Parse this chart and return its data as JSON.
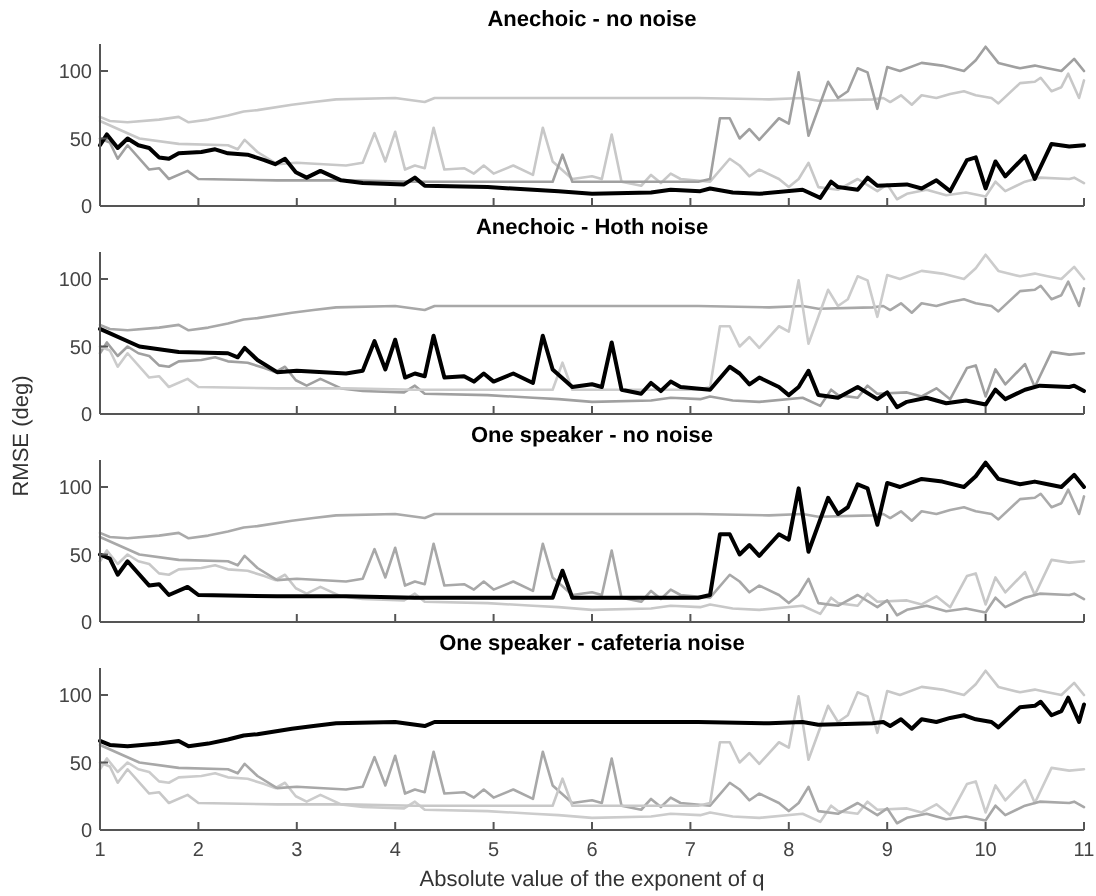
{
  "chart_data": [
    {
      "type": "line",
      "title": "Anechoic - no noise",
      "xlim": [
        1,
        11
      ],
      "ylim": [
        0,
        120
      ],
      "xticks": [
        1,
        2,
        3,
        4,
        5,
        6,
        7,
        8,
        9,
        10,
        11
      ],
      "yticks": [
        0,
        50,
        100
      ],
      "tick_labels": "y",
      "series": [
        {
          "color": "#c8c8c8",
          "x": [
            1,
            1.1,
            1.28,
            1.6,
            1.8,
            1.9,
            2.1,
            2.3,
            2.46,
            2.6,
            2.95,
            3.17,
            3.4,
            4,
            4.3,
            4.4,
            4.95,
            6.4,
            7.08,
            7.8,
            8.14,
            8.3,
            8.85,
            8.96,
            9.03,
            9.14,
            9.25,
            9.35,
            9.5,
            9.64,
            9.78,
            9.9,
            10.06,
            10.13,
            10.35,
            10.5,
            10.56,
            10.67,
            10.77,
            10.84,
            10.95,
            11
          ],
          "values": [
            66,
            63,
            62,
            64,
            66,
            62,
            64,
            67,
            70,
            71,
            75,
            77,
            79,
            80,
            77,
            80,
            80,
            80,
            80,
            79,
            80,
            78,
            79,
            80,
            77,
            82,
            75,
            82,
            80,
            83,
            85,
            82,
            80,
            76,
            91,
            92,
            95,
            85,
            88,
            98,
            80,
            93
          ]
        },
        {
          "color": "#c8c8c8",
          "x": [
            1,
            1.4,
            1.8,
            2.3,
            2.4,
            2.47,
            2.6,
            2.8,
            3,
            3.5,
            3.67,
            3.79,
            3.9,
            4,
            4.1,
            4.2,
            4.3,
            4.39,
            4.5,
            4.7,
            4.8,
            4.9,
            5,
            5.2,
            5.4,
            5.5,
            5.6,
            5.8,
            6,
            6.1,
            6.2,
            6.3,
            6.5,
            6.6,
            6.7,
            6.8,
            6.9,
            7.2,
            7.4,
            7.5,
            7.6,
            7.7,
            7.9,
            8,
            8.1,
            8.2,
            8.3,
            8.5,
            8.7,
            8.9,
            9,
            9.1,
            9.2,
            9.4,
            9.6,
            9.8,
            10,
            10.1,
            10.2,
            10.4,
            10.55,
            10.85,
            10.9,
            11
          ],
          "values": [
            63,
            50,
            46,
            45,
            42,
            49,
            40,
            31,
            32,
            30,
            32,
            54,
            33,
            55,
            27,
            30,
            28,
            58,
            27,
            28,
            24,
            30,
            24,
            30,
            23,
            58,
            33,
            20,
            22,
            20,
            53,
            18,
            15,
            23,
            17,
            24,
            20,
            18,
            35,
            30,
            22,
            27,
            20,
            14,
            20,
            32,
            14,
            12,
            20,
            11,
            16,
            5,
            9,
            12,
            8,
            10,
            7,
            18,
            11,
            18,
            21,
            20,
            21,
            17
          ]
        },
        {
          "color": "#a0a0a0",
          "x": [
            1,
            1.1,
            1.18,
            1.28,
            1.5,
            1.6,
            1.7,
            1.89,
            2,
            2.8,
            3.5,
            4.2,
            5.5,
            5.6,
            5.7,
            5.8,
            6.37,
            7.08,
            7.2,
            7.3,
            7.4,
            7.5,
            7.6,
            7.7,
            7.9,
            8,
            8.1,
            8.2,
            8.4,
            8.5,
            8.6,
            8.7,
            8.8,
            8.9,
            9,
            9.13,
            9.35,
            9.56,
            9.78,
            9.9,
            10,
            10.13,
            10.35,
            10.5,
            10.63,
            10.77,
            10.9,
            11
          ],
          "values": [
            50,
            47,
            35,
            45,
            27,
            28,
            20,
            26,
            20,
            19,
            19,
            18,
            18,
            18,
            38,
            18,
            18,
            18,
            20,
            65,
            65,
            50,
            57,
            49,
            65,
            61,
            99,
            52,
            92,
            80,
            85,
            102,
            99,
            72,
            103,
            100,
            106,
            104,
            100,
            108,
            118,
            106,
            102,
            104,
            102,
            100,
            109,
            100
          ]
        },
        {
          "color": "#000000",
          "x": [
            1,
            1.07,
            1.18,
            1.28,
            1.39,
            1.5,
            1.6,
            1.7,
            1.8,
            2.03,
            2.17,
            2.3,
            2.5,
            2.67,
            2.78,
            2.88,
            2.99,
            3.1,
            3.24,
            3.45,
            3.67,
            4.09,
            4.2,
            4.3,
            4.94,
            5.4,
            5.66,
            6,
            6.6,
            6.8,
            7.1,
            7.2,
            7.43,
            7.7,
            8.14,
            8.32,
            8.43,
            8.5,
            8.7,
            8.8,
            8.9,
            9.2,
            9.35,
            9.5,
            9.64,
            9.81,
            9.9,
            10,
            10.1,
            10.2,
            10.4,
            10.5,
            10.67,
            10.85,
            11
          ],
          "values": [
            45,
            53,
            43,
            50,
            45,
            43,
            36,
            35,
            39,
            40,
            42,
            39,
            38,
            34,
            31,
            35,
            25,
            21,
            26,
            19,
            17,
            16,
            21,
            15,
            14,
            12,
            11,
            9,
            10,
            12,
            11,
            13,
            10,
            9,
            12,
            6,
            18,
            14,
            12,
            21,
            15,
            16,
            13,
            19,
            11,
            34,
            36,
            13,
            33,
            22,
            37,
            20,
            46,
            44,
            45
          ]
        }
      ]
    },
    {
      "type": "line",
      "title": "Anechoic - Hoth noise",
      "ylabel": "RMSE (deg)",
      "xlim": [
        1,
        11
      ],
      "ylim": [
        0,
        120
      ],
      "xticks": [
        1,
        2,
        3,
        4,
        5,
        6,
        7,
        8,
        9,
        10,
        11
      ],
      "yticks": [
        0,
        50,
        100
      ],
      "tick_labels": "y",
      "series": [
        {
          "color": "#a8a8a8",
          "x": [
            1,
            1.1,
            1.28,
            1.6,
            1.8,
            1.9,
            2.1,
            2.3,
            2.46,
            2.6,
            2.95,
            3.17,
            3.4,
            4,
            4.3,
            4.4,
            4.95,
            6.4,
            7.08,
            7.8,
            8.14,
            8.3,
            8.85,
            8.96,
            9.03,
            9.14,
            9.25,
            9.35,
            9.5,
            9.64,
            9.78,
            9.9,
            10.06,
            10.13,
            10.35,
            10.5,
            10.56,
            10.67,
            10.77,
            10.84,
            10.95,
            11
          ],
          "values": [
            66,
            63,
            62,
            64,
            66,
            62,
            64,
            67,
            70,
            71,
            75,
            77,
            79,
            80,
            77,
            80,
            80,
            80,
            80,
            79,
            80,
            78,
            79,
            80,
            77,
            82,
            75,
            82,
            80,
            83,
            85,
            82,
            80,
            76,
            91,
            92,
            95,
            85,
            88,
            98,
            80,
            93
          ]
        },
        {
          "color": "#a0a0a0",
          "x": [
            1,
            1.07,
            1.18,
            1.28,
            1.39,
            1.5,
            1.6,
            1.7,
            1.8,
            2.03,
            2.17,
            2.3,
            2.5,
            2.67,
            2.78,
            2.88,
            2.99,
            3.1,
            3.24,
            3.45,
            3.67,
            4.09,
            4.2,
            4.3,
            4.94,
            5.4,
            5.66,
            6,
            6.6,
            6.8,
            7.1,
            7.2,
            7.43,
            7.7,
            8.14,
            8.32,
            8.43,
            8.5,
            8.7,
            8.8,
            8.9,
            9.2,
            9.35,
            9.5,
            9.64,
            9.81,
            9.9,
            10,
            10.1,
            10.2,
            10.4,
            10.5,
            10.67,
            10.85,
            11
          ],
          "values": [
            45,
            53,
            43,
            50,
            45,
            43,
            36,
            35,
            39,
            40,
            42,
            39,
            38,
            34,
            31,
            35,
            25,
            21,
            26,
            19,
            17,
            16,
            21,
            15,
            14,
            12,
            11,
            9,
            10,
            12,
            11,
            13,
            10,
            9,
            12,
            6,
            18,
            14,
            12,
            21,
            15,
            16,
            13,
            19,
            11,
            34,
            36,
            13,
            33,
            22,
            37,
            20,
            46,
            44,
            45
          ]
        },
        {
          "color": "#cccccc",
          "x": [
            1,
            1.1,
            1.18,
            1.28,
            1.5,
            1.6,
            1.7,
            1.89,
            2,
            2.8,
            3.5,
            4.2,
            5.5,
            5.6,
            5.7,
            5.8,
            6.37,
            7.08,
            7.2,
            7.3,
            7.4,
            7.5,
            7.6,
            7.7,
            7.9,
            8,
            8.1,
            8.2,
            8.4,
            8.5,
            8.6,
            8.7,
            8.8,
            8.9,
            9,
            9.13,
            9.35,
            9.56,
            9.78,
            9.9,
            10,
            10.13,
            10.35,
            10.5,
            10.63,
            10.77,
            10.9,
            11
          ],
          "values": [
            50,
            47,
            35,
            45,
            27,
            28,
            20,
            26,
            20,
            19,
            19,
            18,
            18,
            18,
            38,
            18,
            18,
            18,
            20,
            65,
            65,
            50,
            57,
            49,
            65,
            61,
            99,
            52,
            92,
            80,
            85,
            102,
            99,
            72,
            103,
            100,
            106,
            104,
            100,
            108,
            118,
            106,
            102,
            104,
            102,
            100,
            109,
            100
          ]
        },
        {
          "color": "#000000",
          "x": [
            1,
            1.4,
            1.8,
            2.3,
            2.4,
            2.47,
            2.6,
            2.8,
            3,
            3.5,
            3.67,
            3.79,
            3.9,
            4,
            4.1,
            4.2,
            4.3,
            4.39,
            4.5,
            4.7,
            4.8,
            4.9,
            5,
            5.2,
            5.4,
            5.5,
            5.6,
            5.8,
            6,
            6.1,
            6.2,
            6.3,
            6.5,
            6.6,
            6.7,
            6.8,
            6.9,
            7.2,
            7.4,
            7.5,
            7.6,
            7.7,
            7.9,
            8,
            8.1,
            8.2,
            8.3,
            8.5,
            8.7,
            8.9,
            9,
            9.1,
            9.2,
            9.4,
            9.6,
            9.8,
            10,
            10.1,
            10.2,
            10.4,
            10.55,
            10.85,
            10.9,
            11
          ],
          "values": [
            63,
            50,
            46,
            45,
            42,
            49,
            40,
            31,
            32,
            30,
            32,
            54,
            33,
            55,
            27,
            30,
            28,
            58,
            27,
            28,
            24,
            30,
            24,
            30,
            23,
            58,
            33,
            20,
            22,
            20,
            53,
            18,
            15,
            23,
            17,
            24,
            20,
            18,
            35,
            30,
            22,
            27,
            20,
            14,
            20,
            32,
            14,
            12,
            20,
            11,
            16,
            5,
            9,
            12,
            8,
            10,
            7,
            18,
            11,
            18,
            21,
            20,
            21,
            17
          ]
        }
      ]
    },
    {
      "type": "line",
      "title": "One speaker - no noise",
      "xlim": [
        1,
        11
      ],
      "ylim": [
        0,
        120
      ],
      "xticks": [
        1,
        2,
        3,
        4,
        5,
        6,
        7,
        8,
        9,
        10,
        11
      ],
      "yticks": [
        0,
        50,
        100
      ],
      "tick_labels": "y",
      "series": [
        {
          "color": "#aaaaaa",
          "x": [
            1,
            1.1,
            1.28,
            1.6,
            1.8,
            1.9,
            2.1,
            2.3,
            2.46,
            2.6,
            2.95,
            3.17,
            3.4,
            4,
            4.3,
            4.4,
            4.95,
            6.4,
            7.08,
            7.8,
            8.14,
            8.3,
            8.85,
            8.96,
            9.03,
            9.14,
            9.25,
            9.35,
            9.5,
            9.64,
            9.78,
            9.9,
            10.06,
            10.13,
            10.35,
            10.5,
            10.56,
            10.67,
            10.77,
            10.84,
            10.95,
            11
          ],
          "values": [
            66,
            63,
            62,
            64,
            66,
            62,
            64,
            67,
            70,
            71,
            75,
            77,
            79,
            80,
            77,
            80,
            80,
            80,
            80,
            79,
            80,
            78,
            79,
            80,
            77,
            82,
            75,
            82,
            80,
            83,
            85,
            82,
            80,
            76,
            91,
            92,
            95,
            85,
            88,
            98,
            80,
            93
          ]
        },
        {
          "color": "#c8c8c8",
          "x": [
            1,
            1.07,
            1.18,
            1.28,
            1.39,
            1.5,
            1.6,
            1.7,
            1.8,
            2.03,
            2.17,
            2.3,
            2.5,
            2.67,
            2.78,
            2.88,
            2.99,
            3.1,
            3.24,
            3.45,
            3.67,
            4.09,
            4.2,
            4.3,
            4.94,
            5.4,
            5.66,
            6,
            6.6,
            6.8,
            7.1,
            7.2,
            7.43,
            7.7,
            8.14,
            8.32,
            8.43,
            8.5,
            8.7,
            8.8,
            8.9,
            9.2,
            9.35,
            9.5,
            9.64,
            9.81,
            9.9,
            10,
            10.1,
            10.2,
            10.4,
            10.5,
            10.67,
            10.85,
            11
          ],
          "values": [
            45,
            53,
            43,
            50,
            45,
            43,
            36,
            35,
            39,
            40,
            42,
            39,
            38,
            34,
            31,
            35,
            25,
            21,
            26,
            19,
            17,
            16,
            21,
            15,
            14,
            12,
            11,
            9,
            10,
            12,
            11,
            13,
            10,
            9,
            12,
            6,
            18,
            14,
            12,
            21,
            15,
            16,
            13,
            19,
            11,
            34,
            36,
            13,
            33,
            22,
            37,
            20,
            46,
            44,
            45
          ]
        },
        {
          "color": "#a8a8a8",
          "x": [
            1,
            1.4,
            1.8,
            2.3,
            2.4,
            2.47,
            2.6,
            2.8,
            3,
            3.5,
            3.67,
            3.79,
            3.9,
            4,
            4.1,
            4.2,
            4.3,
            4.39,
            4.5,
            4.7,
            4.8,
            4.9,
            5,
            5.2,
            5.4,
            5.5,
            5.6,
            5.8,
            6,
            6.1,
            6.2,
            6.3,
            6.5,
            6.6,
            6.7,
            6.8,
            6.9,
            7.2,
            7.4,
            7.5,
            7.6,
            7.7,
            7.9,
            8,
            8.1,
            8.2,
            8.3,
            8.5,
            8.7,
            8.9,
            9,
            9.1,
            9.2,
            9.4,
            9.6,
            9.8,
            10,
            10.1,
            10.2,
            10.4,
            10.55,
            10.85,
            10.9,
            11
          ],
          "values": [
            63,
            50,
            46,
            45,
            42,
            49,
            40,
            31,
            32,
            30,
            32,
            54,
            33,
            55,
            27,
            30,
            28,
            58,
            27,
            28,
            24,
            30,
            24,
            30,
            23,
            58,
            33,
            20,
            22,
            20,
            53,
            18,
            15,
            23,
            17,
            24,
            20,
            18,
            35,
            30,
            22,
            27,
            20,
            14,
            20,
            32,
            14,
            12,
            20,
            11,
            16,
            5,
            9,
            12,
            8,
            10,
            7,
            18,
            11,
            18,
            21,
            20,
            21,
            17
          ]
        },
        {
          "color": "#000000",
          "x": [
            1,
            1.1,
            1.18,
            1.28,
            1.5,
            1.6,
            1.7,
            1.89,
            2,
            2.8,
            3.5,
            4.2,
            5.5,
            5.6,
            5.7,
            5.8,
            6.37,
            7.08,
            7.2,
            7.3,
            7.4,
            7.5,
            7.6,
            7.7,
            7.9,
            8,
            8.1,
            8.2,
            8.4,
            8.5,
            8.6,
            8.7,
            8.8,
            8.9,
            9,
            9.13,
            9.35,
            9.56,
            9.78,
            9.9,
            10,
            10.13,
            10.35,
            10.5,
            10.63,
            10.77,
            10.9,
            11
          ],
          "values": [
            50,
            47,
            35,
            45,
            27,
            28,
            20,
            26,
            20,
            19,
            19,
            18,
            18,
            18,
            38,
            18,
            18,
            18,
            20,
            65,
            65,
            50,
            57,
            49,
            65,
            61,
            99,
            52,
            92,
            80,
            85,
            102,
            99,
            72,
            103,
            100,
            106,
            104,
            100,
            108,
            118,
            106,
            102,
            104,
            102,
            100,
            109,
            100
          ]
        }
      ]
    },
    {
      "type": "line",
      "title": "One speaker - cafeteria noise",
      "xlabel": "Absolute value of the exponent of q",
      "xlim": [
        1,
        11
      ],
      "ylim": [
        0,
        120
      ],
      "xticks": [
        1,
        2,
        3,
        4,
        5,
        6,
        7,
        8,
        9,
        10,
        11
      ],
      "yticks": [
        0,
        50,
        100
      ],
      "series": [
        {
          "color": "#cccccc",
          "x": [
            1,
            1.07,
            1.18,
            1.28,
            1.39,
            1.5,
            1.6,
            1.7,
            1.8,
            2.03,
            2.17,
            2.3,
            2.5,
            2.67,
            2.78,
            2.88,
            2.99,
            3.1,
            3.24,
            3.45,
            3.67,
            4.09,
            4.2,
            4.3,
            4.94,
            5.4,
            5.66,
            6,
            6.6,
            6.8,
            7.1,
            7.2,
            7.43,
            7.7,
            8.14,
            8.32,
            8.43,
            8.5,
            8.7,
            8.8,
            8.9,
            9.2,
            9.35,
            9.5,
            9.64,
            9.81,
            9.9,
            10,
            10.1,
            10.2,
            10.4,
            10.5,
            10.67,
            10.85,
            11
          ],
          "values": [
            45,
            53,
            43,
            50,
            45,
            43,
            36,
            35,
            39,
            40,
            42,
            39,
            38,
            34,
            31,
            35,
            25,
            21,
            26,
            19,
            17,
            16,
            21,
            15,
            14,
            12,
            11,
            9,
            10,
            12,
            11,
            13,
            10,
            9,
            12,
            6,
            18,
            14,
            12,
            21,
            15,
            16,
            13,
            19,
            11,
            34,
            36,
            13,
            33,
            22,
            37,
            20,
            46,
            44,
            45
          ]
        },
        {
          "color": "#a8a8a8",
          "x": [
            1,
            1.4,
            1.8,
            2.3,
            2.4,
            2.47,
            2.6,
            2.8,
            3,
            3.5,
            3.67,
            3.79,
            3.9,
            4,
            4.1,
            4.2,
            4.3,
            4.39,
            4.5,
            4.7,
            4.8,
            4.9,
            5,
            5.2,
            5.4,
            5.5,
            5.6,
            5.8,
            6,
            6.1,
            6.2,
            6.3,
            6.5,
            6.6,
            6.7,
            6.8,
            6.9,
            7.2,
            7.4,
            7.5,
            7.6,
            7.7,
            7.9,
            8,
            8.1,
            8.2,
            8.3,
            8.5,
            8.7,
            8.9,
            9,
            9.1,
            9.2,
            9.4,
            9.6,
            9.8,
            10,
            10.1,
            10.2,
            10.4,
            10.55,
            10.85,
            10.9,
            11
          ],
          "values": [
            63,
            50,
            46,
            45,
            42,
            49,
            40,
            31,
            32,
            30,
            32,
            54,
            33,
            55,
            27,
            30,
            28,
            58,
            27,
            28,
            24,
            30,
            24,
            30,
            23,
            58,
            33,
            20,
            22,
            20,
            53,
            18,
            15,
            23,
            17,
            24,
            20,
            18,
            35,
            30,
            22,
            27,
            20,
            14,
            20,
            32,
            14,
            12,
            20,
            11,
            16,
            5,
            9,
            12,
            8,
            10,
            7,
            18,
            11,
            18,
            21,
            20,
            21,
            17
          ]
        },
        {
          "color": "#c8c8c8",
          "x": [
            1,
            1.1,
            1.18,
            1.28,
            1.5,
            1.6,
            1.7,
            1.89,
            2,
            2.8,
            3.5,
            4.2,
            5.5,
            5.6,
            5.7,
            5.8,
            6.37,
            7.08,
            7.2,
            7.3,
            7.4,
            7.5,
            7.6,
            7.7,
            7.9,
            8,
            8.1,
            8.2,
            8.4,
            8.5,
            8.6,
            8.7,
            8.8,
            8.9,
            9,
            9.13,
            9.35,
            9.56,
            9.78,
            9.9,
            10,
            10.13,
            10.35,
            10.5,
            10.63,
            10.77,
            10.9,
            11
          ],
          "values": [
            50,
            47,
            35,
            45,
            27,
            28,
            20,
            26,
            20,
            19,
            19,
            18,
            18,
            18,
            38,
            18,
            18,
            18,
            20,
            65,
            65,
            50,
            57,
            49,
            65,
            61,
            99,
            52,
            92,
            80,
            85,
            102,
            99,
            72,
            103,
            100,
            106,
            104,
            100,
            108,
            118,
            106,
            102,
            104,
            102,
            100,
            109,
            100
          ]
        },
        {
          "color": "#000000",
          "x": [
            1,
            1.1,
            1.28,
            1.6,
            1.8,
            1.9,
            2.1,
            2.3,
            2.46,
            2.6,
            2.95,
            3.17,
            3.4,
            4,
            4.3,
            4.4,
            4.95,
            6.4,
            7.08,
            7.8,
            8.14,
            8.3,
            8.85,
            8.96,
            9.03,
            9.14,
            9.25,
            9.35,
            9.5,
            9.64,
            9.78,
            9.9,
            10.06,
            10.13,
            10.35,
            10.5,
            10.56,
            10.67,
            10.77,
            10.84,
            10.95,
            11
          ],
          "values": [
            66,
            63,
            62,
            64,
            66,
            62,
            64,
            67,
            70,
            71,
            75,
            77,
            79,
            80,
            77,
            80,
            80,
            80,
            80,
            79,
            80,
            78,
            79,
            80,
            77,
            82,
            75,
            82,
            80,
            83,
            85,
            82,
            80,
            76,
            91,
            92,
            95,
            85,
            88,
            98,
            80,
            93
          ]
        }
      ]
    }
  ]
}
